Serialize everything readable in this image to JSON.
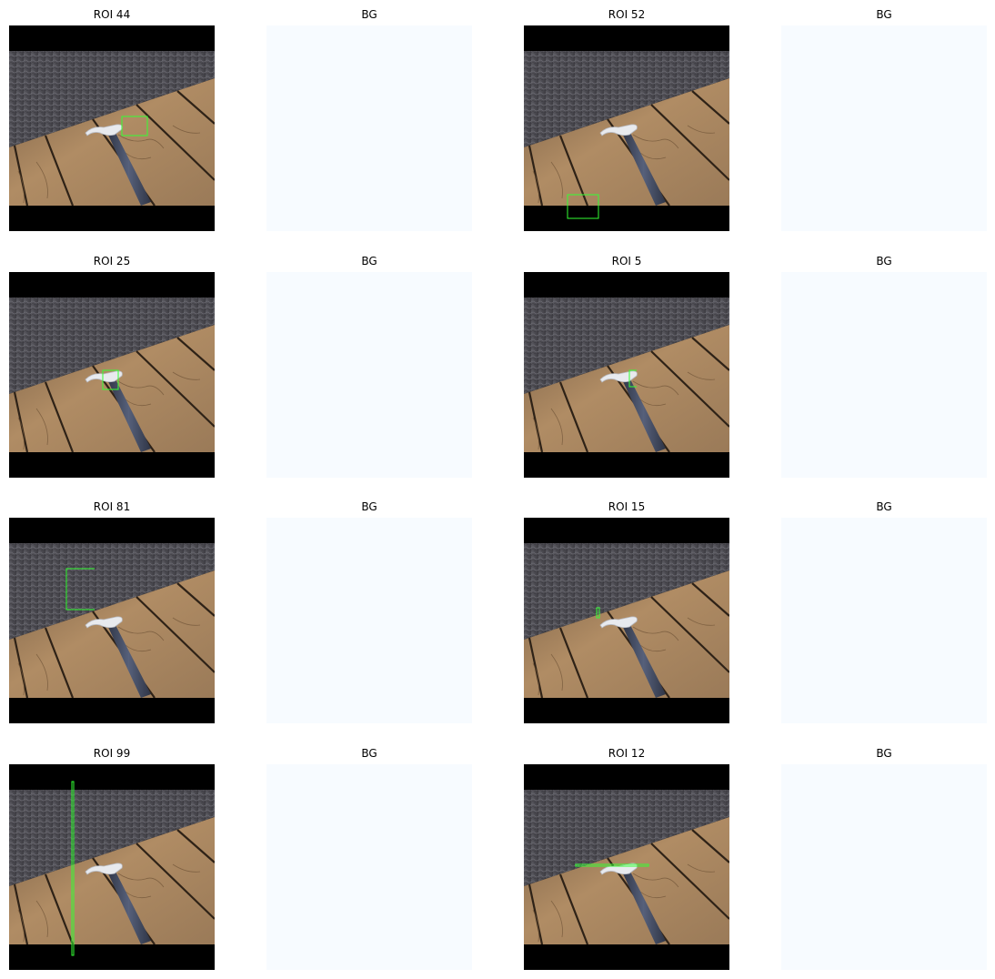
{
  "panels": [
    {
      "title": "ROI 44",
      "kind": "roi"
    },
    {
      "title": "BG",
      "kind": "bg"
    },
    {
      "title": "ROI 52",
      "kind": "roi"
    },
    {
      "title": "BG",
      "kind": "bg"
    },
    {
      "title": "ROI 25",
      "kind": "roi"
    },
    {
      "title": "BG",
      "kind": "bg"
    },
    {
      "title": "ROI 5",
      "kind": "roi"
    },
    {
      "title": "BG",
      "kind": "bg"
    },
    {
      "title": "ROI 81",
      "kind": "roi"
    },
    {
      "title": "BG",
      "kind": "bg"
    },
    {
      "title": "ROI 15",
      "kind": "roi"
    },
    {
      "title": "BG",
      "kind": "bg"
    },
    {
      "title": "ROI 99",
      "kind": "roi"
    },
    {
      "title": "BG",
      "kind": "bg"
    },
    {
      "title": "ROI 12",
      "kind": "roi"
    },
    {
      "title": "BG",
      "kind": "bg"
    }
  ],
  "colors": {
    "box": "#33ff33",
    "bg_tile": "#f7fbff",
    "letterbox": "#000000",
    "wall": "#4d4c52",
    "wood": "#a7845d",
    "hammer_handle": "#40485a",
    "hammer_head": "#e8eaee"
  }
}
